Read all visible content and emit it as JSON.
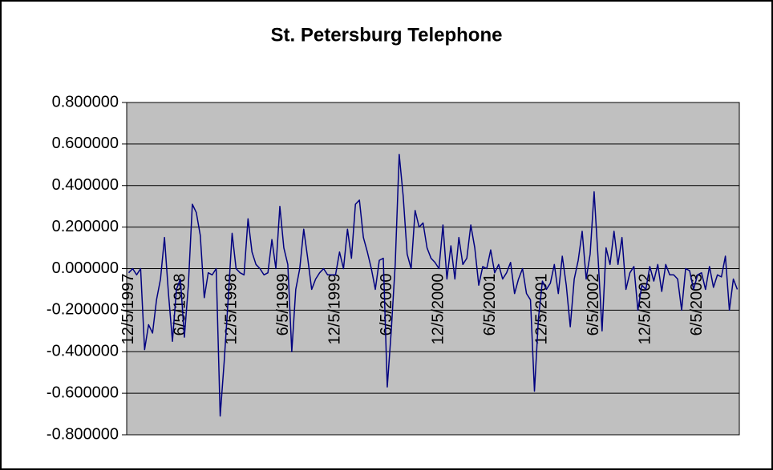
{
  "chart_data": {
    "type": "line",
    "title": "St. Petersburg Telephone",
    "categories": [
      "12/5/1997",
      null,
      null,
      null,
      null,
      null,
      null,
      null,
      null,
      null,
      null,
      null,
      null,
      "6/5/1998",
      null,
      null,
      null,
      null,
      null,
      null,
      null,
      null,
      null,
      null,
      null,
      null,
      "12/5/1998",
      null,
      null,
      null,
      null,
      null,
      null,
      null,
      null,
      null,
      null,
      null,
      null,
      "6/5/1999",
      null,
      null,
      null,
      null,
      null,
      null,
      null,
      null,
      null,
      null,
      null,
      null,
      "12/5/1999",
      null,
      null,
      null,
      null,
      null,
      null,
      null,
      null,
      null,
      null,
      null,
      null,
      "6/5/2000",
      null,
      null,
      null,
      null,
      null,
      null,
      null,
      null,
      null,
      null,
      null,
      null,
      "12/5/2000",
      null,
      null,
      null,
      null,
      null,
      null,
      null,
      null,
      null,
      null,
      null,
      null,
      "6/5/2001",
      null,
      null,
      null,
      null,
      null,
      null,
      null,
      null,
      null,
      null,
      null,
      null,
      "12/5/2001",
      null,
      null,
      null,
      null,
      null,
      null,
      null,
      null,
      null,
      null,
      null,
      null,
      "6/5/2002",
      null,
      null,
      null,
      null,
      null,
      null,
      null,
      null,
      null,
      null,
      null,
      null,
      "12/5/2002",
      null,
      null,
      null,
      null,
      null,
      null,
      null,
      null,
      null,
      null,
      null,
      null,
      "6/5/2003",
      null,
      null,
      null,
      null,
      null,
      null,
      null,
      null,
      null,
      null
    ],
    "values": [
      -0.02,
      0.0,
      -0.03,
      0.0,
      -0.39,
      -0.27,
      -0.31,
      -0.15,
      -0.05,
      0.15,
      -0.12,
      -0.35,
      -0.1,
      -0.05,
      -0.33,
      -0.08,
      0.31,
      0.27,
      0.16,
      -0.14,
      -0.02,
      -0.03,
      0.0,
      -0.71,
      -0.45,
      -0.15,
      0.17,
      0.0,
      -0.02,
      -0.03,
      0.24,
      0.08,
      0.02,
      0.0,
      -0.03,
      -0.02,
      0.14,
      0.0,
      0.3,
      0.1,
      0.02,
      -0.4,
      -0.1,
      0.0,
      0.19,
      0.05,
      -0.1,
      -0.05,
      -0.02,
      0.0,
      -0.03,
      -0.03,
      -0.03,
      0.08,
      0.0,
      0.19,
      0.05,
      0.31,
      0.33,
      0.15,
      0.08,
      0.0,
      -0.1,
      0.04,
      0.05,
      -0.57,
      -0.3,
      0.02,
      0.55,
      0.35,
      0.07,
      0.0,
      0.28,
      0.2,
      0.22,
      0.1,
      0.05,
      0.03,
      0.0,
      0.21,
      -0.05,
      0.11,
      -0.05,
      0.15,
      0.02,
      0.05,
      0.21,
      0.1,
      -0.08,
      0.01,
      0.0,
      0.09,
      -0.02,
      0.02,
      -0.05,
      -0.02,
      0.03,
      -0.12,
      -0.05,
      0.0,
      -0.12,
      -0.15,
      -0.59,
      -0.24,
      -0.06,
      -0.1,
      -0.07,
      0.02,
      -0.12,
      0.06,
      -0.08,
      -0.28,
      -0.05,
      0.04,
      0.18,
      -0.05,
      0.07,
      0.37,
      0.05,
      -0.3,
      0.1,
      0.02,
      0.18,
      0.02,
      0.15,
      -0.1,
      -0.02,
      0.01,
      -0.2,
      -0.08,
      -0.1,
      0.01,
      -0.06,
      0.02,
      -0.11,
      0.02,
      -0.03,
      -0.03,
      -0.05,
      -0.2,
      0.0,
      -0.01,
      -0.1,
      -0.03,
      -0.02,
      -0.1,
      0.01,
      -0.09,
      -0.03,
      -0.04,
      0.06,
      -0.2,
      -0.05,
      -0.1
    ],
    "color": "#000080",
    "ylim": [
      -0.8,
      0.8
    ],
    "yticks": [
      {
        "value": -0.8,
        "label": "-0.800000"
      },
      {
        "value": -0.6,
        "label": "-0.600000"
      },
      {
        "value": -0.4,
        "label": "-0.400000"
      },
      {
        "value": -0.2,
        "label": "-0.200000"
      },
      {
        "value": 0,
        "label": "0.000000"
      },
      {
        "value": 0.2,
        "label": "0.200000"
      },
      {
        "value": 0.4,
        "label": "0.400000"
      },
      {
        "value": 0.6,
        "label": "0.600000"
      },
      {
        "value": 0.8,
        "label": "0.800000"
      }
    ],
    "grid": true,
    "plot_background": "#c0c0c0"
  }
}
